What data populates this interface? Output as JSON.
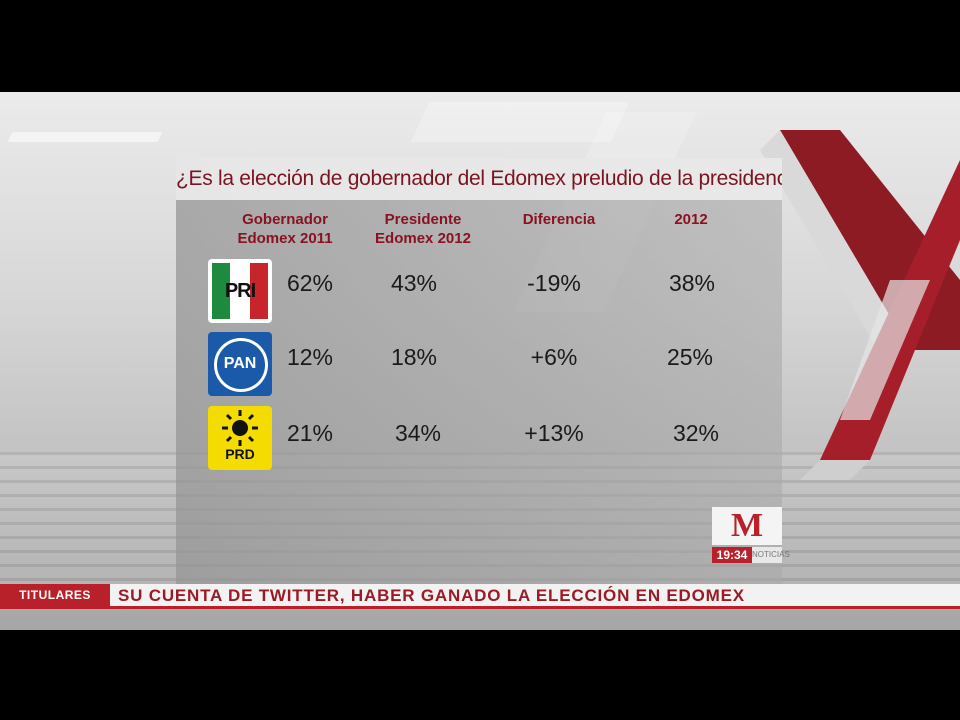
{
  "title": "¿Es la elección de gobernador del Edomex preludio de la presidencial?",
  "columns": [
    "Gobernador Edomex 2011",
    "Presidente Edomex 2012",
    "Diferencia",
    "2012"
  ],
  "columns_lines": [
    [
      "Gobernador",
      "Edomex 2011"
    ],
    [
      "Presidente",
      "Edomex 2012"
    ],
    [
      "Diferencia",
      ""
    ],
    [
      "2012",
      ""
    ]
  ],
  "rows": [
    {
      "party": "PRI",
      "logo_text": "PRI",
      "values": [
        "62%",
        "43%",
        "-19%",
        "38%"
      ]
    },
    {
      "party": "PAN",
      "logo_text": "PAN",
      "values": [
        "12%",
        "18%",
        "+6%",
        "25%"
      ]
    },
    {
      "party": "PRD",
      "logo_text": "PRD",
      "values": [
        "21%",
        "34%",
        "+13%",
        "32%"
      ]
    }
  ],
  "ticker": {
    "label": "TITULARES",
    "text": "SU CUENTA DE TWITTER, HABER GANADO LA ELECCIÓN EN EDOMEX"
  },
  "channel": {
    "logo": "M",
    "time": "19:34",
    "sub": "NOTICIAS"
  },
  "colors": {
    "accent": "#b8202a",
    "title_text": "#7a1420",
    "pri_green": "#1e8a3e",
    "pan_blue": "#1a5aa8",
    "prd_yellow": "#f4dc00"
  }
}
